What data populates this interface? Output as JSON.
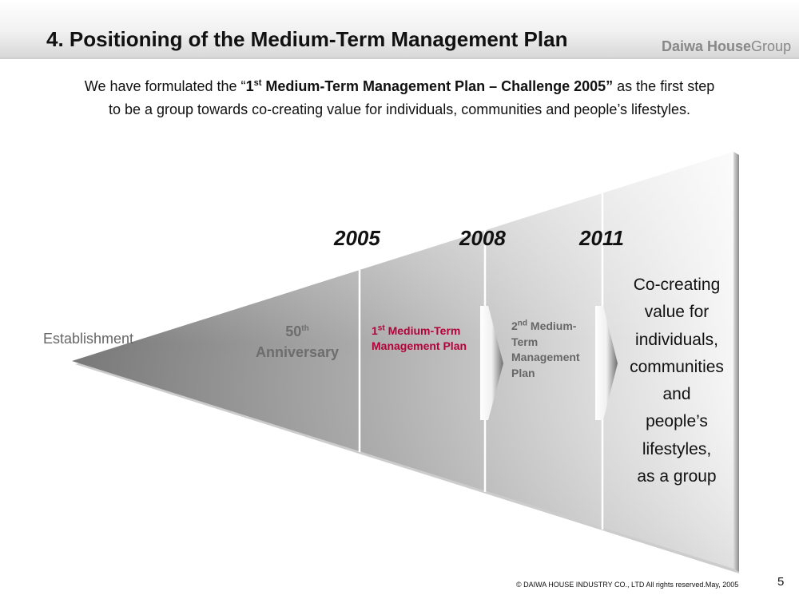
{
  "header": {
    "title": "4. Positioning of the Medium-Term Management Plan",
    "logo_primary": "Daiwa House",
    "logo_secondary": "Group"
  },
  "intro": {
    "line1_a": "We have formulated the “",
    "line1_plan_prefix": "1",
    "line1_plan_sup": "st",
    "line1_plan_rest": " Medium-Term Management Plan – Challenge 2005”",
    "line1_b": " as the first step",
    "line2": "to be a group towards co-creating value for individuals, communities and people’s lifestyles."
  },
  "diagram": {
    "years": [
      "2005",
      "2008",
      "2011"
    ],
    "establishment": "Establishment",
    "anniversary_num": "50",
    "anniversary_sup": "th",
    "anniversary_word": "Anniversary",
    "plan1_num": "1",
    "plan1_sup": "st",
    "plan1_text": " Medium-Term Management Plan",
    "plan2_num": "2",
    "plan2_sup": "nd",
    "plan2_text": " Medium-Term Management Plan",
    "goal_lines": [
      "Co-creating",
      "value for",
      "individuals,",
      "communities",
      "and",
      "people’s",
      "lifestyles,",
      "as a group"
    ],
    "colors": {
      "plan1_text": "#b3003a",
      "plan2_text": "#666666",
      "wedge_dark": "#7e7e7e",
      "wedge_light": "#f4f4f4"
    }
  },
  "footer": {
    "copyright": "© DAIWA HOUSE INDUSTRY CO., LTD All rights reserved.May, 2005",
    "page_number": "5"
  }
}
